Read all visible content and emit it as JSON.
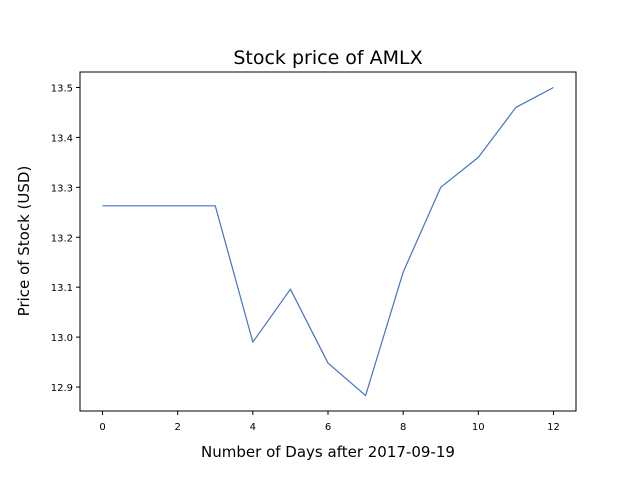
{
  "chart_data": {
    "type": "line",
    "title": "Stock price of AMLX",
    "xlabel": "Number of Days after 2017-09-19",
    "ylabel": "Price of Stock (USD)",
    "x": [
      0,
      1,
      2,
      3,
      4,
      5,
      6,
      7,
      8,
      9,
      10,
      11,
      12
    ],
    "series": [
      {
        "values": [
          13.263,
          13.263,
          13.263,
          13.263,
          12.99,
          13.096,
          12.948,
          12.883,
          13.13,
          13.3,
          13.36,
          13.46,
          13.5
        ]
      }
    ],
    "xticks": [
      "0",
      "2",
      "4",
      "6",
      "8",
      "10",
      "12"
    ],
    "yticks": [
      "12.9",
      "13.0",
      "13.1",
      "13.2",
      "13.3",
      "13.4",
      "13.5"
    ],
    "xlim": [
      -0.6,
      12.6
    ],
    "ylim": [
      12.852,
      13.531
    ],
    "grid": false,
    "line_color": "#4472c4"
  }
}
